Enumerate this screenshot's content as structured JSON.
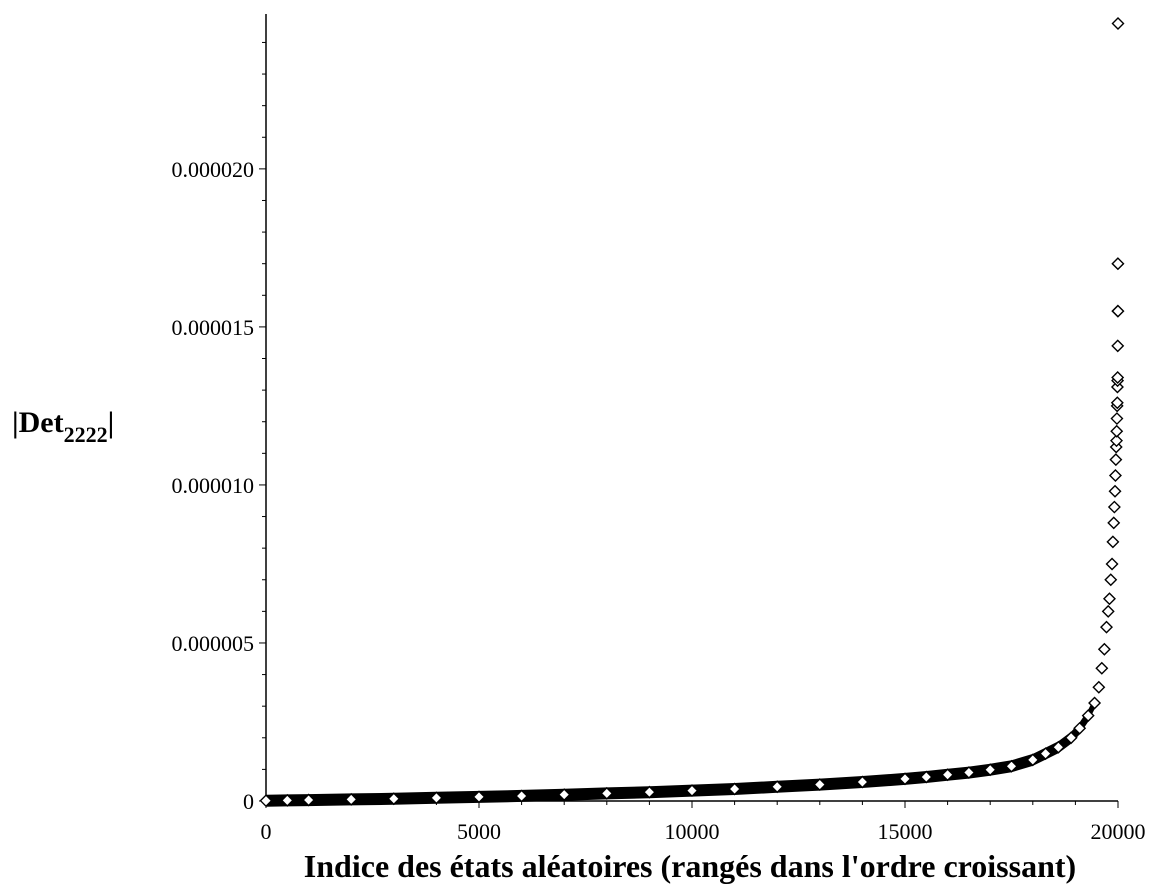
{
  "chart_data": {
    "type": "scatter",
    "title": "",
    "xlabel": "Indice des états aléatoires (rangés dans l'ordre croissant)",
    "ylabel": {
      "prefix": "|Det",
      "subscript": "2222",
      "suffix": "|"
    },
    "xlim": [
      0,
      20000
    ],
    "ylim": [
      0,
      2.49e-05
    ],
    "x_ticks": [
      {
        "value": 0,
        "label": "0"
      },
      {
        "value": 5000,
        "label": "5000"
      },
      {
        "value": 10000,
        "label": "10000"
      },
      {
        "value": 15000,
        "label": "15000"
      },
      {
        "value": 20000,
        "label": "20000"
      }
    ],
    "y_ticks": [
      {
        "value": 0,
        "label": "0"
      },
      {
        "value": 5e-06,
        "label": "0.000005"
      },
      {
        "value": 1e-05,
        "label": "0.000010"
      },
      {
        "value": 1.5e-05,
        "label": "0.000015"
      },
      {
        "value": 2e-05,
        "label": "0.000020"
      }
    ],
    "marker": "diamond-open",
    "grid": false,
    "series": [
      {
        "x": [
          0,
          500,
          1000,
          2000,
          3000,
          4000,
          5000,
          6000,
          7000,
          8000,
          9000,
          10000,
          11000,
          12000,
          13000,
          14000,
          15000,
          15500,
          16000,
          16500,
          17000,
          17500,
          18000,
          18300,
          18600,
          18900,
          19100,
          19300,
          19450,
          19550,
          19620,
          19680,
          19730,
          19770,
          19800,
          19830,
          19860,
          19880,
          19900,
          19915,
          19930,
          19940,
          19950,
          19958,
          19965,
          19970,
          19975,
          19980,
          19984,
          19987,
          19990,
          19992,
          19994,
          19996,
          19997,
          19998,
          19999,
          20000
        ],
        "y": [
          1e-08,
          2e-08,
          3e-08,
          5e-08,
          7e-08,
          1e-07,
          1.3e-07,
          1.6e-07,
          2e-07,
          2.4e-07,
          2.8e-07,
          3.3e-07,
          3.8e-07,
          4.5e-07,
          5.2e-07,
          6e-07,
          7e-07,
          7.6e-07,
          8.3e-07,
          9e-07,
          9.9e-07,
          1.1e-06,
          1.3e-06,
          1.5e-06,
          1.7e-06,
          2e-06,
          2.3e-06,
          2.7e-06,
          3.1e-06,
          3.6e-06,
          4.2e-06,
          4.8e-06,
          5.5e-06,
          6e-06,
          6.4e-06,
          7e-06,
          7.5e-06,
          8.2e-06,
          8.8e-06,
          9.3e-06,
          9.8e-06,
          1.03e-05,
          1.08e-05,
          1.12e-05,
          1.14e-05,
          1.17e-05,
          1.21e-05,
          1.25e-05,
          1.26e-05,
          1.31e-05,
          1.33e-05,
          1.34e-05,
          1.44e-05,
          1.55e-05,
          1.7e-05,
          1.7e-05,
          1.55e-05,
          2.46e-05
        ]
      }
    ]
  }
}
